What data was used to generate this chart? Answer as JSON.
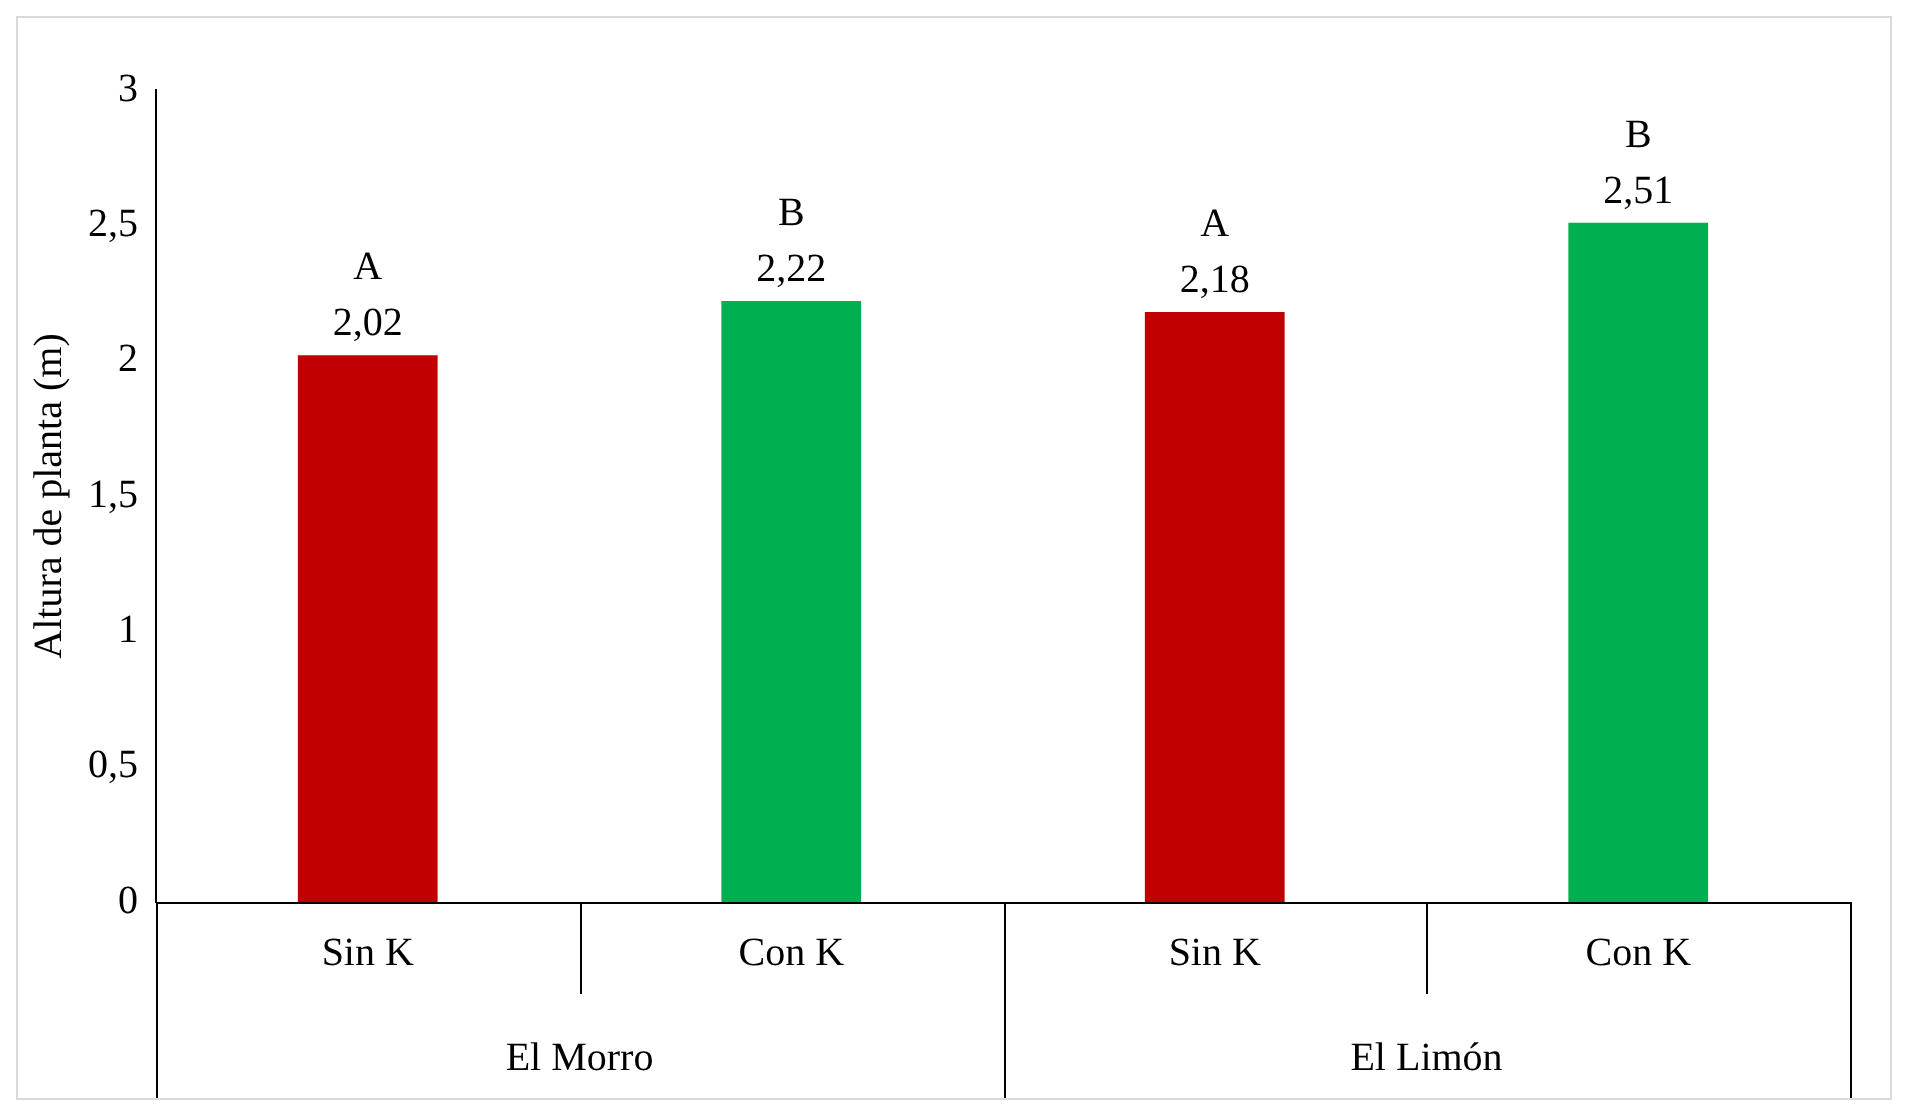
{
  "chart_data": {
    "type": "bar",
    "ylabel": "Altura de planta (m)",
    "categories": [
      "Sin K",
      "Con K",
      "Sin K",
      "Con K"
    ],
    "values": [
      2.02,
      2.22,
      2.18,
      2.51
    ],
    "colors": [
      "#c00000",
      "#00b050",
      "#c00000",
      "#00b050"
    ],
    "value_labels": [
      "2,02",
      "2,22",
      "2,18",
      "2,51"
    ],
    "annotations": [
      "A",
      "B",
      "A",
      "B",
      "El Morro",
      "El Limón"
    ],
    "ylim": [
      0,
      3
    ],
    "yticks": [
      0,
      {
        "value": 0.5,
        "label": "0,5"
      },
      1,
      {
        "value": 1.5,
        "label": "1,5"
      },
      2,
      {
        "value": 2.5,
        "label": "2,5"
      },
      3
    ],
    "grid": false,
    "legend": false
  }
}
